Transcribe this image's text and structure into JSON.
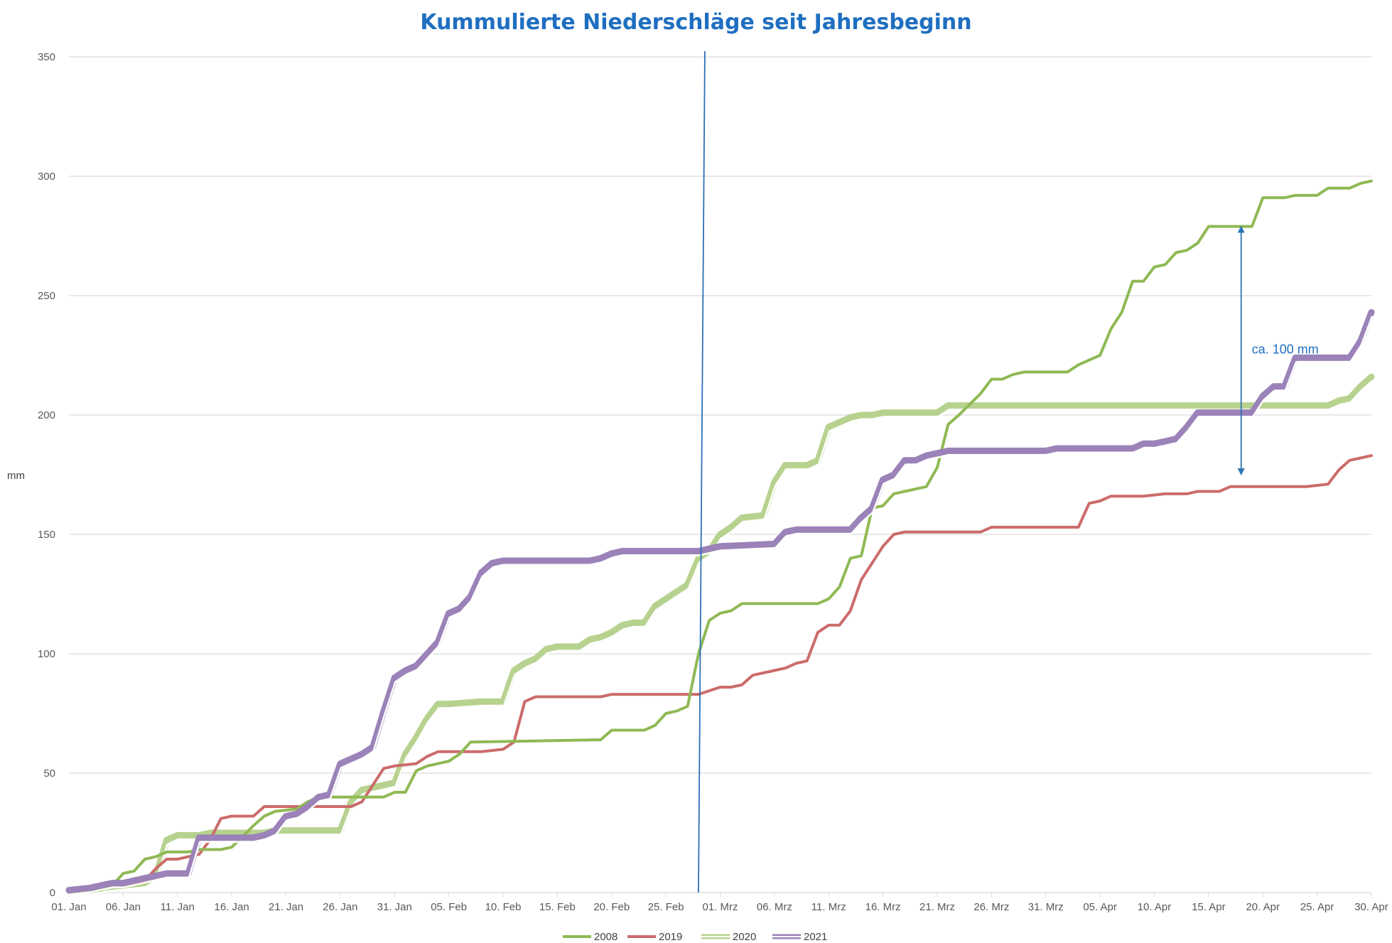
{
  "chart_data": {
    "type": "line",
    "title": "Kummulierte Niederschläge seit Jahresbeginn",
    "ylabel": "mm",
    "xlabel": "",
    "ylim": [
      0,
      350
    ],
    "yticks": [
      0,
      50,
      100,
      150,
      200,
      250,
      300,
      350
    ],
    "x_start": "01. Jan",
    "x_end": "30. Apr",
    "x_tick_labels": [
      "01. Jan",
      "06. Jan",
      "11. Jan",
      "16. Jan",
      "21. Jan",
      "26. Jan",
      "31. Jan",
      "05. Feb",
      "10. Feb",
      "15. Feb",
      "20. Feb",
      "25. Feb",
      "01. Mrz",
      "06. Mrz",
      "11. Mrz",
      "16. Mrz",
      "21. Mrz",
      "26. Mrz",
      "31. Mrz",
      "05. Apr",
      "10. Apr",
      "15. Apr",
      "20. Apr",
      "25. Apr",
      "30. Apr"
    ],
    "grid": true,
    "legend_position": "bottom",
    "series": [
      {
        "name": "2008",
        "color": "#8fb954",
        "style": "solid",
        "points": [
          [
            "01. Jan",
            0
          ],
          [
            "04. Jan",
            1
          ],
          [
            "05. Jan",
            3
          ],
          [
            "06. Jan",
            8
          ],
          [
            "07. Jan",
            9
          ],
          [
            "08. Jan",
            14
          ],
          [
            "09. Jan",
            15
          ],
          [
            "10. Jan",
            17
          ],
          [
            "12. Jan",
            17
          ],
          [
            "13. Jan",
            18
          ],
          [
            "15. Jan",
            18
          ],
          [
            "16. Jan",
            19
          ],
          [
            "18. Jan",
            28
          ],
          [
            "19. Jan",
            32
          ],
          [
            "20. Jan",
            34
          ],
          [
            "22. Jan",
            35
          ],
          [
            "23. Jan",
            38
          ],
          [
            "24. Jan",
            40
          ],
          [
            "29. Jan",
            40
          ],
          [
            "30. Jan",
            40
          ],
          [
            "31. Jan",
            42
          ],
          [
            "01. Feb",
            42
          ],
          [
            "02. Feb",
            51
          ],
          [
            "03. Feb",
            53
          ],
          [
            "04. Feb",
            54
          ],
          [
            "05. Feb",
            55
          ],
          [
            "06. Feb",
            58
          ],
          [
            "07. Feb",
            63
          ],
          [
            "19. Feb",
            64
          ],
          [
            "20. Feb",
            68
          ],
          [
            "23. Feb",
            68
          ],
          [
            "24. Feb",
            70
          ],
          [
            "25. Feb",
            75
          ],
          [
            "26. Feb",
            76
          ],
          [
            "27. Feb",
            78
          ],
          [
            "28. Feb",
            100
          ],
          [
            "29. Feb",
            114
          ],
          [
            "01. Mrz",
            117
          ],
          [
            "02. Mrz",
            118
          ],
          [
            "03. Mrz",
            121
          ],
          [
            "10. Mrz",
            121
          ],
          [
            "11. Mrz",
            123
          ],
          [
            "12. Mrz",
            128
          ],
          [
            "13. Mrz",
            140
          ],
          [
            "14. Mrz",
            141
          ],
          [
            "15. Mrz",
            161
          ],
          [
            "16. Mrz",
            162
          ],
          [
            "17. Mrz",
            167
          ],
          [
            "18. Mrz",
            168
          ],
          [
            "19. Mrz",
            169
          ],
          [
            "20. Mrz",
            170
          ],
          [
            "21. Mrz",
            178
          ],
          [
            "22. Mrz",
            196
          ],
          [
            "23. Mrz",
            200
          ],
          [
            "25. Mrz",
            209
          ],
          [
            "26. Mrz",
            215
          ],
          [
            "27. Mrz",
            215
          ],
          [
            "28. Mrz",
            217
          ],
          [
            "29. Mrz",
            218
          ],
          [
            "02. Apr",
            218
          ],
          [
            "03. Apr",
            221
          ],
          [
            "05. Apr",
            225
          ],
          [
            "06. Apr",
            236
          ],
          [
            "07. Apr",
            243
          ],
          [
            "08. Apr",
            256
          ],
          [
            "09. Apr",
            256
          ],
          [
            "10. Apr",
            262
          ],
          [
            "11. Apr",
            263
          ],
          [
            "12. Apr",
            268
          ],
          [
            "13. Apr",
            269
          ],
          [
            "14. Apr",
            272
          ],
          [
            "15. Apr",
            279
          ],
          [
            "19. Apr",
            279
          ],
          [
            "20. Apr",
            291
          ],
          [
            "22. Apr",
            291
          ],
          [
            "23. Apr",
            292
          ],
          [
            "25. Apr",
            292
          ],
          [
            "26. Apr",
            295
          ],
          [
            "28. Apr",
            295
          ],
          [
            "29. Apr",
            297
          ],
          [
            "30. Apr",
            298
          ]
        ]
      },
      {
        "name": "2019",
        "color": "#cc6b6b",
        "style": "solid",
        "points": [
          [
            "01. Jan",
            1
          ],
          [
            "06. Jan",
            3
          ],
          [
            "08. Jan",
            5
          ],
          [
            "09. Jan",
            10
          ],
          [
            "10. Jan",
            14
          ],
          [
            "11. Jan",
            14
          ],
          [
            "12. Jan",
            15
          ],
          [
            "13. Jan",
            16
          ],
          [
            "14. Jan",
            22
          ],
          [
            "15. Jan",
            31
          ],
          [
            "16. Jan",
            32
          ],
          [
            "18. Jan",
            32
          ],
          [
            "19. Jan",
            36
          ],
          [
            "25. Jan",
            36
          ],
          [
            "26. Jan",
            36
          ],
          [
            "27. Jan",
            36
          ],
          [
            "28. Jan",
            38
          ],
          [
            "29. Jan",
            45
          ],
          [
            "30. Jan",
            52
          ],
          [
            "31. Jan",
            53
          ],
          [
            "02. Feb",
            54
          ],
          [
            "03. Feb",
            57
          ],
          [
            "04. Feb",
            59
          ],
          [
            "08. Feb",
            59
          ],
          [
            "10. Feb",
            60
          ],
          [
            "11. Feb",
            63
          ],
          [
            "12. Feb",
            80
          ],
          [
            "13. Feb",
            82
          ],
          [
            "19. Feb",
            82
          ],
          [
            "20. Feb",
            83
          ],
          [
            "28. Feb",
            83
          ],
          [
            "01. Mrz",
            86
          ],
          [
            "02. Mrz",
            86
          ],
          [
            "03. Mrz",
            87
          ],
          [
            "04. Mrz",
            91
          ],
          [
            "06. Mrz",
            93
          ],
          [
            "07. Mrz",
            94
          ],
          [
            "08. Mrz",
            96
          ],
          [
            "09. Mrz",
            97
          ],
          [
            "10. Mrz",
            109
          ],
          [
            "11. Mrz",
            112
          ],
          [
            "12. Mrz",
            112
          ],
          [
            "13. Mrz",
            118
          ],
          [
            "14. Mrz",
            131
          ],
          [
            "15. Mrz",
            138
          ],
          [
            "16. Mrz",
            145
          ],
          [
            "17. Mrz",
            150
          ],
          [
            "18. Mrz",
            151
          ],
          [
            "25. Mrz",
            151
          ],
          [
            "26. Mrz",
            153
          ],
          [
            "03. Apr",
            153
          ],
          [
            "04. Apr",
            163
          ],
          [
            "05. Apr",
            164
          ],
          [
            "06. Apr",
            166
          ],
          [
            "09. Apr",
            166
          ],
          [
            "11. Apr",
            167
          ],
          [
            "13. Apr",
            167
          ],
          [
            "14. Apr",
            168
          ],
          [
            "16. Apr",
            168
          ],
          [
            "17. Apr",
            170
          ],
          [
            "24. Apr",
            170
          ],
          [
            "26. Apr",
            171
          ],
          [
            "27. Apr",
            177
          ],
          [
            "28. Apr",
            181
          ],
          [
            "29. Apr",
            182
          ],
          [
            "30. Apr",
            183
          ]
        ]
      },
      {
        "name": "2020",
        "color": "#b7d28f",
        "style": "double",
        "points": [
          [
            "01. Jan",
            1
          ],
          [
            "03. Jan",
            1
          ],
          [
            "04. Jan",
            2
          ],
          [
            "08. Jan",
            4
          ],
          [
            "09. Jan",
            7
          ],
          [
            "10. Jan",
            22
          ],
          [
            "11. Jan",
            24
          ],
          [
            "13. Jan",
            24
          ],
          [
            "14. Jan",
            25
          ],
          [
            "19. Jan",
            25
          ],
          [
            "20. Jan",
            26
          ],
          [
            "25. Jan",
            26
          ],
          [
            "26. Jan",
            26
          ],
          [
            "27. Jan",
            38
          ],
          [
            "28. Jan",
            43
          ],
          [
            "29. Jan",
            44
          ],
          [
            "30. Jan",
            45
          ],
          [
            "31. Jan",
            46
          ],
          [
            "01. Feb",
            58
          ],
          [
            "02. Feb",
            65
          ],
          [
            "03. Feb",
            73
          ],
          [
            "04. Feb",
            79
          ],
          [
            "05. Feb",
            79
          ],
          [
            "08. Feb",
            80
          ],
          [
            "10. Feb",
            80
          ],
          [
            "11. Feb",
            93
          ],
          [
            "12. Feb",
            96
          ],
          [
            "13. Feb",
            98
          ],
          [
            "14. Feb",
            102
          ],
          [
            "15. Feb",
            103
          ],
          [
            "17. Feb",
            103
          ],
          [
            "18. Feb",
            106
          ],
          [
            "19. Feb",
            107
          ],
          [
            "20. Feb",
            109
          ],
          [
            "21. Feb",
            112
          ],
          [
            "22. Feb",
            113
          ],
          [
            "23. Feb",
            113
          ],
          [
            "24. Feb",
            120
          ],
          [
            "25. Feb",
            123
          ],
          [
            "26. Feb",
            126
          ],
          [
            "27. Feb",
            129
          ],
          [
            "28. Feb",
            140
          ],
          [
            "29. Feb",
            143
          ],
          [
            "01. Mrz",
            150
          ],
          [
            "02. Mrz",
            153
          ],
          [
            "03. Mrz",
            157
          ],
          [
            "05. Mrz",
            158
          ],
          [
            "06. Mrz",
            172
          ],
          [
            "07. Mrz",
            179
          ],
          [
            "09. Mrz",
            179
          ],
          [
            "10. Mrz",
            181
          ],
          [
            "11. Mrz",
            195
          ],
          [
            "12. Mrz",
            197
          ],
          [
            "13. Mrz",
            199
          ],
          [
            "14. Mrz",
            200
          ],
          [
            "15. Mrz",
            200
          ],
          [
            "16. Mrz",
            201
          ],
          [
            "21. Mrz",
            201
          ],
          [
            "22. Mrz",
            204
          ],
          [
            "24. Apr",
            204
          ],
          [
            "25. Apr",
            204
          ],
          [
            "26. Apr",
            204
          ],
          [
            "27. Apr",
            206
          ],
          [
            "28. Apr",
            207
          ],
          [
            "29. Apr",
            212
          ],
          [
            "30. Apr",
            216
          ]
        ]
      },
      {
        "name": "2021",
        "color": "#9b82b8",
        "style": "double",
        "points": [
          [
            "01. Jan",
            1
          ],
          [
            "03. Jan",
            2
          ],
          [
            "04. Jan",
            3
          ],
          [
            "05. Jan",
            4
          ],
          [
            "06. Jan",
            4
          ],
          [
            "07. Jan",
            5
          ],
          [
            "08. Jan",
            6
          ],
          [
            "09. Jan",
            7
          ],
          [
            "10. Jan",
            8
          ],
          [
            "12. Jan",
            8
          ],
          [
            "13. Jan",
            23
          ],
          [
            "18. Jan",
            23
          ],
          [
            "19. Jan",
            24
          ],
          [
            "20. Jan",
            26
          ],
          [
            "21. Jan",
            32
          ],
          [
            "22. Jan",
            33
          ],
          [
            "23. Jan",
            36
          ],
          [
            "24. Jan",
            40
          ],
          [
            "25. Jan",
            41
          ],
          [
            "26. Jan",
            54
          ],
          [
            "27. Jan",
            56
          ],
          [
            "28. Jan",
            58
          ],
          [
            "29. Jan",
            61
          ],
          [
            "30. Jan",
            76
          ],
          [
            "31. Jan",
            90
          ],
          [
            "01. Feb",
            93
          ],
          [
            "02. Feb",
            95
          ],
          [
            "03. Feb",
            100
          ],
          [
            "04. Feb",
            105
          ],
          [
            "05. Feb",
            117
          ],
          [
            "06. Feb",
            119
          ],
          [
            "07. Feb",
            124
          ],
          [
            "08. Feb",
            134
          ],
          [
            "09. Feb",
            138
          ],
          [
            "10. Feb",
            139
          ],
          [
            "18. Feb",
            139
          ],
          [
            "19. Feb",
            140
          ],
          [
            "20. Feb",
            142
          ],
          [
            "21. Feb",
            143
          ],
          [
            "28. Feb",
            143
          ],
          [
            "01. Mrz",
            145
          ],
          [
            "06. Mrz",
            146
          ],
          [
            "07. Mrz",
            151
          ],
          [
            "08. Mrz",
            152
          ],
          [
            "13. Mrz",
            152
          ],
          [
            "14. Mrz",
            157
          ],
          [
            "15. Mrz",
            161
          ],
          [
            "16. Mrz",
            173
          ],
          [
            "17. Mrz",
            175
          ],
          [
            "18. Mrz",
            181
          ],
          [
            "19. Mrz",
            181
          ],
          [
            "20. Mrz",
            183
          ],
          [
            "21. Mrz",
            184
          ],
          [
            "22. Mrz",
            185
          ],
          [
            "31. Mrz",
            185
          ],
          [
            "01. Apr",
            186
          ],
          [
            "08. Apr",
            186
          ],
          [
            "09. Apr",
            188
          ],
          [
            "10. Apr",
            188
          ],
          [
            "11. Apr",
            189
          ],
          [
            "12. Apr",
            190
          ],
          [
            "13. Apr",
            195
          ],
          [
            "14. Apr",
            201
          ],
          [
            "19. Apr",
            201
          ],
          [
            "20. Apr",
            208
          ],
          [
            "21. Apr",
            212
          ],
          [
            "22. Apr",
            212
          ],
          [
            "23. Apr",
            224
          ],
          [
            "27. Apr",
            224
          ],
          [
            "28. Apr",
            224
          ],
          [
            "29. Apr",
            231
          ],
          [
            "30. Apr",
            243
          ]
        ]
      }
    ],
    "annotations": [
      {
        "type": "vertical_line",
        "label": "",
        "x": "28. Feb",
        "color": "#2e6fb6"
      },
      {
        "type": "double_arrow",
        "label": "ca. 100 mm",
        "x": "18. Apr",
        "y_from": 175,
        "y_to": 279,
        "color": "#2e75b6"
      }
    ]
  }
}
